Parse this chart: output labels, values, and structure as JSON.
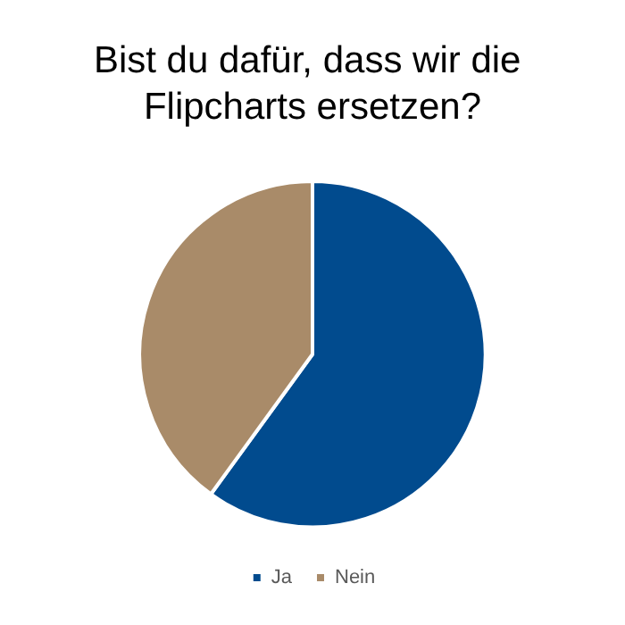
{
  "chart_data": {
    "type": "pie",
    "title": "Bist du dafür, dass wir die Flipcharts ersetzen?",
    "categories": [
      "Ja",
      "Nein"
    ],
    "values": [
      60,
      40
    ],
    "colors": [
      "#014b8e",
      "#a98b69"
    ],
    "legend": "bottom"
  }
}
